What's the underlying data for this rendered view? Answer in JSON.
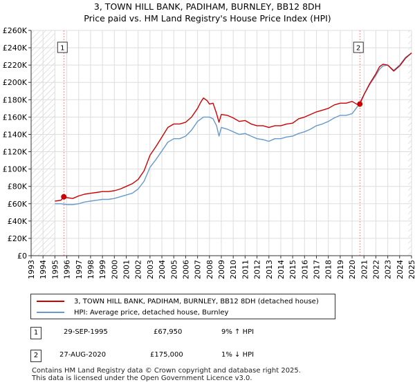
{
  "title": {
    "line1": "3, TOWN HILL BANK, PADIHAM, BURNLEY, BB12 8DH",
    "line2": "Price paid vs. HM Land Registry's House Price Index (HPI)"
  },
  "chart_data": {
    "type": "line",
    "title": "3, TOWN HILL BANK, PADIHAM, BURNLEY, BB12 8DH",
    "subtitle": "Price paid vs. HM Land Registry's House Price Index (HPI)",
    "xlabel": "",
    "ylabel": "",
    "xlim": [
      1993,
      2025
    ],
    "ylim": [
      0,
      260000
    ],
    "x_ticks": [
      "1993",
      "1994",
      "1995",
      "1996",
      "1997",
      "1998",
      "1999",
      "2000",
      "2001",
      "2002",
      "2003",
      "2004",
      "2005",
      "2006",
      "2007",
      "2008",
      "2009",
      "2010",
      "2011",
      "2012",
      "2013",
      "2014",
      "2015",
      "2016",
      "2017",
      "2018",
      "2019",
      "2020",
      "2021",
      "2022",
      "2023",
      "2024",
      "2025"
    ],
    "y_ticks": [
      {
        "value": 0,
        "label": "£0"
      },
      {
        "value": 20000,
        "label": "£20K"
      },
      {
        "value": 40000,
        "label": "£40K"
      },
      {
        "value": 60000,
        "label": "£60K"
      },
      {
        "value": 80000,
        "label": "£80K"
      },
      {
        "value": 100000,
        "label": "£100K"
      },
      {
        "value": 120000,
        "label": "£120K"
      },
      {
        "value": 140000,
        "label": "£140K"
      },
      {
        "value": 160000,
        "label": "£160K"
      },
      {
        "value": 180000,
        "label": "£180K"
      },
      {
        "value": 200000,
        "label": "£200K"
      },
      {
        "value": 220000,
        "label": "£220K"
      },
      {
        "value": 240000,
        "label": "£240K"
      },
      {
        "value": 260000,
        "label": "£260K"
      }
    ],
    "grid": true,
    "hatched_regions": [
      [
        1993,
        1995.0
      ],
      [
        2025,
        2025
      ]
    ],
    "sale_markers": [
      {
        "id": "1",
        "x": 1995.75,
        "y": 67950
      },
      {
        "id": "2",
        "x": 2020.65,
        "y": 175000
      }
    ],
    "series": [
      {
        "name": "3, TOWN HILL BANK, PADIHAM, BURNLEY, BB12 8DH (detached house)",
        "color": "#cc0000",
        "x": [
          1995.0,
          1995.5,
          1995.75,
          1996.0,
          1996.5,
          1997.0,
          1997.5,
          1998.0,
          1998.5,
          1999.0,
          1999.5,
          2000.0,
          2000.5,
          2001.0,
          2001.5,
          2002.0,
          2002.5,
          2003.0,
          2003.5,
          2004.0,
          2004.5,
          2005.0,
          2005.5,
          2006.0,
          2006.5,
          2007.0,
          2007.3,
          2007.5,
          2007.8,
          2008.0,
          2008.3,
          2008.6,
          2008.8,
          2009.0,
          2009.5,
          2010.0,
          2010.5,
          2011.0,
          2011.5,
          2012.0,
          2012.5,
          2013.0,
          2013.5,
          2014.0,
          2014.5,
          2015.0,
          2015.5,
          2016.0,
          2016.5,
          2017.0,
          2017.5,
          2018.0,
          2018.5,
          2019.0,
          2019.5,
          2020.0,
          2020.5,
          2020.65,
          2021.0,
          2021.5,
          2022.0,
          2022.3,
          2022.6,
          2023.0,
          2023.5,
          2024.0,
          2024.5,
          2025.0
        ],
        "y": [
          63000,
          64000,
          67950,
          67000,
          66000,
          69000,
          71000,
          72000,
          73000,
          74000,
          74000,
          75000,
          77000,
          80000,
          83000,
          88000,
          98000,
          116000,
          126000,
          137000,
          148000,
          152000,
          152000,
          154000,
          160000,
          170000,
          178000,
          182000,
          179000,
          175000,
          176000,
          164000,
          154000,
          163000,
          162000,
          159000,
          155000,
          156000,
          152000,
          150000,
          150000,
          148000,
          150000,
          150000,
          152000,
          153000,
          158000,
          160000,
          163000,
          166000,
          168000,
          170000,
          174000,
          176000,
          176000,
          178000,
          174000,
          175000,
          186000,
          199000,
          210000,
          218000,
          221000,
          220000,
          213000,
          219000,
          228000,
          234000
        ]
      },
      {
        "name": "HPI: Average price, detached house, Burnley",
        "color": "#6699cc",
        "x": [
          1995.0,
          1995.5,
          1996.0,
          1996.5,
          1997.0,
          1997.5,
          1998.0,
          1998.5,
          1999.0,
          1999.5,
          2000.0,
          2000.5,
          2001.0,
          2001.5,
          2002.0,
          2002.5,
          2003.0,
          2003.5,
          2004.0,
          2004.5,
          2005.0,
          2005.5,
          2006.0,
          2006.5,
          2007.0,
          2007.5,
          2008.0,
          2008.3,
          2008.6,
          2008.8,
          2009.0,
          2009.5,
          2010.0,
          2010.5,
          2011.0,
          2011.5,
          2012.0,
          2012.5,
          2013.0,
          2013.5,
          2014.0,
          2014.5,
          2015.0,
          2015.5,
          2016.0,
          2016.5,
          2017.0,
          2017.5,
          2018.0,
          2018.5,
          2019.0,
          2019.5,
          2020.0,
          2020.5,
          2021.0,
          2021.5,
          2022.0,
          2022.3,
          2022.6,
          2023.0,
          2023.5,
          2024.0,
          2024.5,
          2025.0
        ],
        "y": [
          60000,
          60000,
          59000,
          59000,
          60000,
          62000,
          63000,
          64000,
          65000,
          65000,
          66000,
          68000,
          70000,
          72000,
          77000,
          86000,
          102000,
          111000,
          121000,
          131000,
          135000,
          135000,
          138000,
          145000,
          155000,
          160000,
          160000,
          158000,
          150000,
          138000,
          148000,
          146000,
          143000,
          140000,
          141000,
          138000,
          135000,
          134000,
          132000,
          135000,
          135000,
          137000,
          138000,
          141000,
          143000,
          146000,
          150000,
          152000,
          155000,
          159000,
          162000,
          162000,
          164000,
          173000,
          186000,
          198000,
          208000,
          215000,
          219000,
          220000,
          214000,
          220000,
          229000,
          234000
        ]
      }
    ]
  },
  "legend": {
    "items": [
      {
        "label": "3, TOWN HILL BANK, PADIHAM, BURNLEY, BB12 8DH (detached house)",
        "color": "#cc0000"
      },
      {
        "label": "HPI: Average price, detached house, Burnley",
        "color": "#6699cc"
      }
    ]
  },
  "sales": [
    {
      "id": "1",
      "date": "29-SEP-1995",
      "price": "£67,950",
      "hpi": "9% ↑ HPI"
    },
    {
      "id": "2",
      "date": "27-AUG-2020",
      "price": "£175,000",
      "hpi": "1% ↓ HPI"
    }
  ],
  "footer": {
    "line1": "Contains HM Land Registry data © Crown copyright and database right 2025.",
    "line2": "This data is licensed under the Open Government Licence v3.0."
  }
}
